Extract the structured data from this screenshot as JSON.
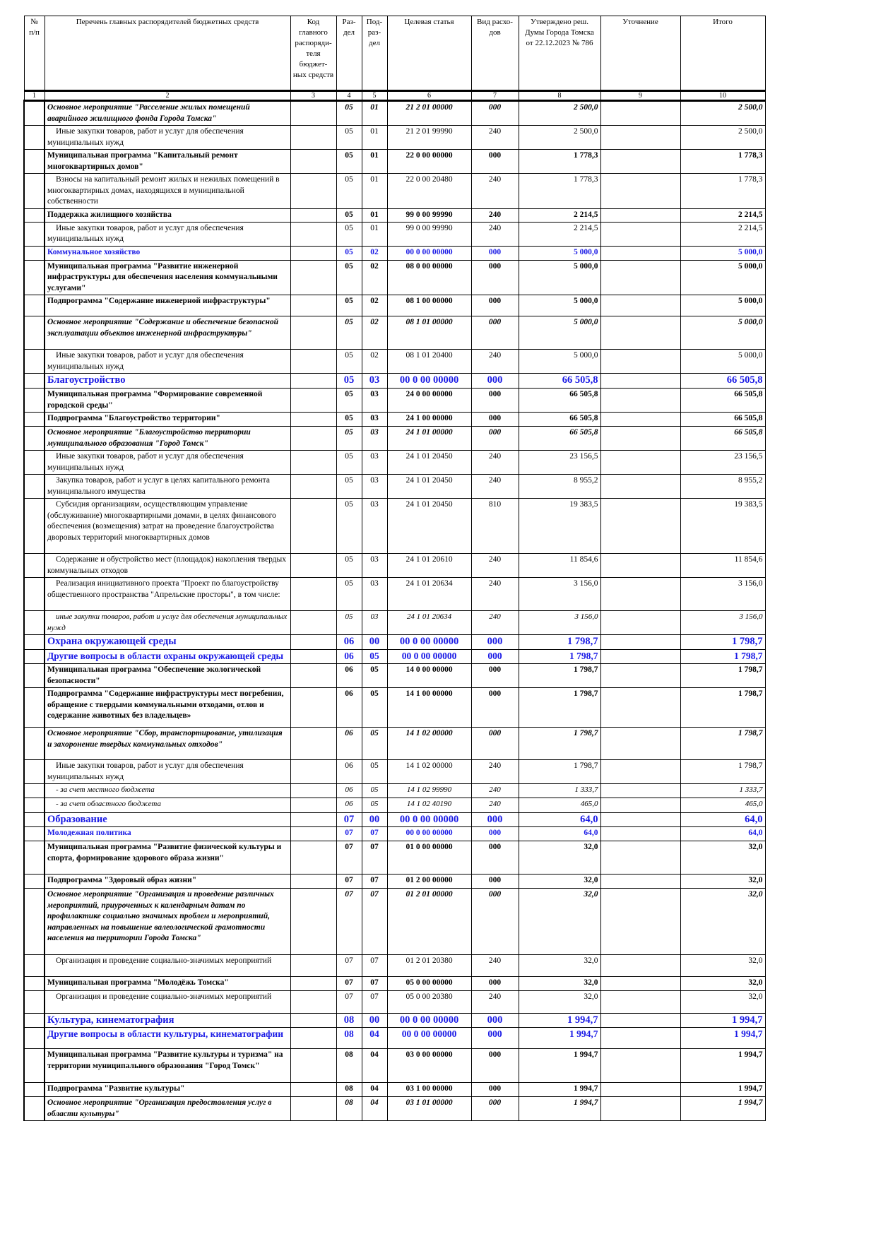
{
  "header": [
    "№ п/п",
    "Перечень главных распорядителей бюджетных средств",
    "Код главного распоряди-теля бюджет-ных средств",
    "Раз-дел",
    "Под-раз-дел",
    "Целевая статья",
    "Вид расхо-дов",
    "Утверждено реш. Думы Города Томска от 22.12.2023 № 786",
    "Уточнение",
    "Итого"
  ],
  "column_numbers": [
    "1",
    "2",
    "3",
    "4",
    "5",
    "6",
    "7",
    "8",
    "9",
    "10"
  ],
  "rows": [
    {
      "s": "bi",
      "t": "Основное мероприятие \"Расселение жилых помещений аварийного жилищного фонда Города Томска\"",
      "rz": "05",
      "pr": "01",
      "cs": "21 2 01 00000",
      "vr": "000",
      "a": "2 500,0",
      "tot": "2 500,0"
    },
    {
      "s": "n",
      "t": "Иные закупки товаров, работ и услуг для обеспечения муниципальных нужд",
      "rz": "05",
      "pr": "01",
      "cs": "21 2 01 99990",
      "vr": "240",
      "a": "2 500,0",
      "tot": "2 500,0"
    },
    {
      "s": "b",
      "t": "Муниципальная программа \"Капитальный ремонт многоквартирных домов\"",
      "rz": "05",
      "pr": "01",
      "cs": "22 0 00 00000",
      "vr": "000",
      "a": "1 778,3",
      "tot": "1 778,3"
    },
    {
      "s": "n",
      "t": "Взносы на капитальный ремонт жилых и нежилых помещений в многоквартирных домах, находящихся в муниципальной собственности",
      "rz": "05",
      "pr": "01",
      "cs": "22 0 00 20480",
      "vr": "240",
      "a": "1 778,3",
      "tot": "1 778,3"
    },
    {
      "s": "b",
      "t": "Поддержка жилищного хозяйства",
      "rz": "05",
      "pr": "01",
      "cs": "99 0 00 99990",
      "vr": "240",
      "a": "2 214,5",
      "tot": "2 214,5"
    },
    {
      "s": "n",
      "t": "Иные закупки товаров, работ и услуг для обеспечения муниципальных нужд",
      "rz": "05",
      "pr": "01",
      "cs": "99 0 00 99990",
      "vr": "240",
      "a": "2 214,5",
      "tot": "2 214,5"
    },
    {
      "s": "bs",
      "t": "Коммунальное хозяйство",
      "rz": "05",
      "pr": "02",
      "cs": "00 0 00 00000",
      "vr": "000",
      "a": "5 000,0",
      "tot": "5 000,0"
    },
    {
      "s": "b",
      "t": "Муниципальная программа \"Развитие инженерной инфраструктуры для обеспечения населения коммунальными услугами\"",
      "rz": "05",
      "pr": "02",
      "cs": "08 0 00 00000",
      "vr": "000",
      "a": "5 000,0",
      "tot": "5 000,0"
    },
    {
      "s": "b",
      "t": "Подпрограмма \"Содержание инженерной инфраструктуры\"",
      "rz": "05",
      "pr": "02",
      "cs": "08 1 00 00000",
      "vr": "000",
      "a": "5 000,0",
      "tot": "5 000,0"
    },
    {
      "s": "bi",
      "t": "Основное мероприятие \"Содержание и обеспечение безопасной эксплуатации объектов инженерной инфраструктуры\"",
      "rz": "05",
      "pr": "02",
      "cs": "08 1 01 00000",
      "vr": "000",
      "a": "5 000,0",
      "tot": "5 000,0"
    },
    {
      "s": "n",
      "t": "Иные закупки товаров, работ и услуг для обеспечения муниципальных нужд",
      "rz": "05",
      "pr": "02",
      "cs": "08 1 01 20400",
      "vr": "240",
      "a": "5 000,0",
      "tot": "5 000,0"
    },
    {
      "s": "bl",
      "t": "Благоустройство",
      "rz": "05",
      "pr": "03",
      "cs": "00 0 00 00000",
      "vr": "000",
      "a": "66 505,8",
      "tot": "66 505,8"
    },
    {
      "s": "b",
      "t": "Муниципальная программа \"Формирование современной городской среды\"",
      "rz": "05",
      "pr": "03",
      "cs": "24 0 00 00000",
      "vr": "000",
      "a": "66 505,8",
      "tot": "66 505,8"
    },
    {
      "s": "b",
      "t": "Подпрограмма \"Благоустройство территории\"",
      "rz": "05",
      "pr": "03",
      "cs": "24 1 00 00000",
      "vr": "000",
      "a": "66 505,8",
      "tot": "66 505,8"
    },
    {
      "s": "bi",
      "t": "Основное мероприятие \"Благоустройство территории муниципального образования \"Город Томск\"",
      "rz": "05",
      "pr": "03",
      "cs": "24 1 01 00000",
      "vr": "000",
      "a": "66 505,8",
      "tot": "66 505,8"
    },
    {
      "s": "n",
      "t": "Иные закупки товаров, работ и услуг для обеспечения муниципальных нужд",
      "rz": "05",
      "pr": "03",
      "cs": "24 1 01 20450",
      "vr": "240",
      "a": "23 156,5",
      "tot": "23 156,5"
    },
    {
      "s": "n",
      "t": "Закупка товаров, работ и услуг в целях капитального ремонта муниципального имущества",
      "rz": "05",
      "pr": "03",
      "cs": "24 1 01 20450",
      "vr": "240",
      "a": "8 955,2",
      "tot": "8 955,2"
    },
    {
      "s": "n",
      "t": "Субсидия организациям, осуществляющим управление (обслуживание) многоквартирными домами, в целях финансового обеспечения (возмещения) затрат на проведение благоустройства дворовых территорий многоквартирных домов",
      "rz": "05",
      "pr": "03",
      "cs": "24 1 01 20450",
      "vr": "810",
      "a": "19 383,5",
      "tot": "19 383,5"
    },
    {
      "s": "n",
      "t": "Содержание и обустройство мест (площадок) накопления твердых коммунальных отходов",
      "rz": "05",
      "pr": "03",
      "cs": "24 1 01 20610",
      "vr": "240",
      "a": "11 854,6",
      "tot": "11 854,6"
    },
    {
      "s": "n",
      "t": "Реализация инициативного проекта \"Проект по благоустройству общественного пространства \"Апрельские просторы\", в том числе:",
      "rz": "05",
      "pr": "03",
      "cs": "24 1 01 20634",
      "vr": "240",
      "a": "3 156,0",
      "tot": "3 156,0"
    },
    {
      "s": "i",
      "t": "иные закупки товаров, работ и услуг для обеспечения муниципальных нужд",
      "rz": "05",
      "pr": "03",
      "cs": "24 1 01 20634",
      "vr": "240",
      "a": "3 156,0",
      "tot": "3 156,0"
    },
    {
      "s": "bl",
      "t": "Охрана окружающей среды",
      "rz": "06",
      "pr": "00",
      "cs": "00 0 00 00000",
      "vr": "000",
      "a": "1 798,7",
      "tot": "1 798,7"
    },
    {
      "s": "bm",
      "t": "Другие вопросы в области охраны окружающей среды",
      "rz": "06",
      "pr": "05",
      "cs": "00 0 00 00000",
      "vr": "000",
      "a": "1 798,7",
      "tot": "1 798,7"
    },
    {
      "s": "b",
      "t": "Муниципальная программа \"Обеспечение экологической безопасности\"",
      "rz": "06",
      "pr": "05",
      "cs": "14 0 00 00000",
      "vr": "000",
      "a": "1 798,7",
      "tot": "1 798,7"
    },
    {
      "s": "b",
      "t": "Подпрограмма \"Содержание инфраструктуры мест погребения, обращение с твердыми коммунальными отходами, отлов и содержание животных без владельцев»",
      "rz": "06",
      "pr": "05",
      "cs": "14 1 00 00000",
      "vr": "000",
      "a": "1 798,7",
      "tot": "1 798,7"
    },
    {
      "s": "bi",
      "t": "Основное мероприятие \"Сбор, транспортирование, утилизация и захоронение твердых коммунальных отходов\"",
      "rz": "06",
      "pr": "05",
      "cs": "14 1 02 00000",
      "vr": "000",
      "a": "1 798,7",
      "tot": "1 798,7"
    },
    {
      "s": "n",
      "t": "Иные закупки товаров, работ и услуг для обеспечения муниципальных нужд",
      "rz": "06",
      "pr": "05",
      "cs": "14 1 02 00000",
      "vr": "240",
      "a": "1 798,7",
      "tot": "1 798,7"
    },
    {
      "s": "i",
      "t": "- за счет местного бюджета",
      "rz": "06",
      "pr": "05",
      "cs": "14 1 02 99990",
      "vr": "240",
      "a": "1 333,7",
      "tot": "1 333,7"
    },
    {
      "s": "i",
      "t": "- за счет областного бюджета",
      "rz": "06",
      "pr": "05",
      "cs": "14 1 02 40190",
      "vr": "240",
      "a": "465,0",
      "tot": "465,0"
    },
    {
      "s": "bl",
      "t": "Образование",
      "rz": "07",
      "pr": "00",
      "cs": "00 0 00 00000",
      "vr": "000",
      "a": "64,0",
      "tot": "64,0"
    },
    {
      "s": "bs",
      "t": "Молодежная политика",
      "rz": "07",
      "pr": "07",
      "cs": "00 0 00 00000",
      "vr": "000",
      "a": "64,0",
      "tot": "64,0"
    },
    {
      "s": "b",
      "t": "Муниципальная программа \"Развитие физической культуры и спорта, формирование здорового образа жизни\"",
      "rz": "07",
      "pr": "07",
      "cs": "01 0 00 00000",
      "vr": "000",
      "a": "32,0",
      "tot": "32,0"
    },
    {
      "s": "b",
      "t": "Подпрограмма \"Здоровый образ жизни\"",
      "rz": "07",
      "pr": "07",
      "cs": "01 2 00 00000",
      "vr": "000",
      "a": "32,0",
      "tot": "32,0"
    },
    {
      "s": "bi",
      "t": "Основное мероприятие \"Организация и проведение различных мероприятий, приуроченных к календарным датам по профилактике социально значимых проблем и мероприятий, направленных на повышение валеологической грамотности населения на территории Города Томска\"",
      "rz": "07",
      "pr": "07",
      "cs": "01 2 01 00000",
      "vr": "000",
      "a": "32,0",
      "tot": "32,0"
    },
    {
      "s": "n",
      "t": "Организация и проведение социально-значимых мероприятий",
      "rz": "07",
      "pr": "07",
      "cs": "01 2 01 20380",
      "vr": "240",
      "a": "32,0",
      "tot": "32,0"
    },
    {
      "s": "b",
      "t": "Муниципальная программа \"Молодёжь Томска\"",
      "rz": "07",
      "pr": "07",
      "cs": "05 0 00 00000",
      "vr": "000",
      "a": "32,0",
      "tot": "32,0"
    },
    {
      "s": "n",
      "t": "Организация и проведение социально-значимых мероприятий",
      "rz": "07",
      "pr": "07",
      "cs": "05 0 00 20380",
      "vr": "240",
      "a": "32,0",
      "tot": "32,0"
    },
    {
      "s": "bl",
      "t": "Культура, кинематография",
      "rz": "08",
      "pr": "00",
      "cs": "00 0 00 00000",
      "vr": "000",
      "a": "1 994,7",
      "tot": "1 994,7"
    },
    {
      "s": "bm",
      "t": "Другие вопросы в области культуры, кинематографии",
      "rz": "08",
      "pr": "04",
      "cs": "00 0 00 00000",
      "vr": "000",
      "a": "1 994,7",
      "tot": "1 994,7"
    },
    {
      "s": "b",
      "t": "Муниципальная программа \"Развитие культуры и туризма\" на территории муниципального образования \"Город Томск\"",
      "rz": "08",
      "pr": "04",
      "cs": "03 0 00 00000",
      "vr": "000",
      "a": "1 994,7",
      "tot": "1 994,7"
    },
    {
      "s": "b",
      "t": "Подпрограмма \"Развитие культуры\"",
      "rz": "08",
      "pr": "04",
      "cs": "03 1 00 00000",
      "vr": "000",
      "a": "1 994,7",
      "tot": "1 994,7"
    },
    {
      "s": "bi",
      "t": "Основное мероприятие \"Организация предоставления услуг в области культуры\"",
      "rz": "08",
      "pr": "04",
      "cs": "03 1 01 00000",
      "vr": "000",
      "a": "1 994,7",
      "tot": "1 994,7"
    }
  ]
}
